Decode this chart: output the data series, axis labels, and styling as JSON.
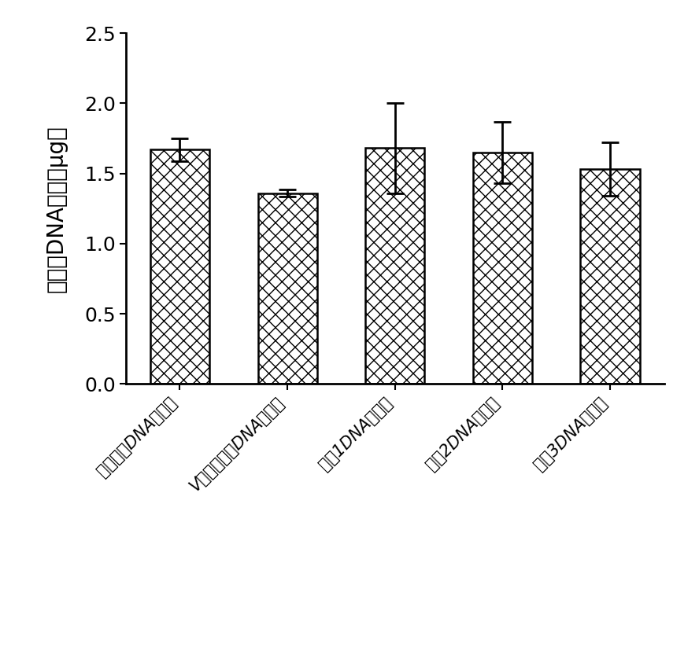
{
  "categories": [
    "本试剂盒DNA吸附柱",
    "V公司试剂盒DNA吸附柱",
    "厂失1DNA吸附柱",
    "厂失2DNA吸附柱",
    "厂失3DNA吸附柱"
  ],
  "values": [
    1.67,
    1.36,
    1.68,
    1.65,
    1.53
  ],
  "errors": [
    0.08,
    0.025,
    0.32,
    0.22,
    0.19
  ],
  "ylabel": "回收后DNA总量（μg）",
  "ylabel_chars": [
    "回",
    "收",
    "后",
    "D",
    "N",
    "A",
    "总",
    "量",
    "（",
    "μg",
    "）"
  ],
  "ylim": [
    0.0,
    2.5
  ],
  "yticks": [
    0.0,
    0.5,
    1.0,
    1.5,
    2.0,
    2.5
  ],
  "background_color": "#ffffff",
  "bar_width": 0.55,
  "tick_fontsize": 18,
  "label_fontsize": 20,
  "xticklabel_fontsize": 15
}
